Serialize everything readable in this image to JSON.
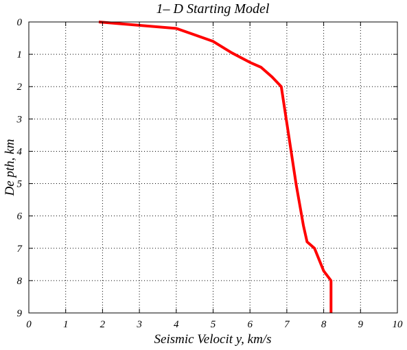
{
  "chart_data": {
    "type": "line",
    "title": "1– D Starting Model",
    "xlabel": "Seismic Velocit y, km/s",
    "ylabel": "De pth, km",
    "xlim": [
      0,
      10
    ],
    "ylim": [
      0,
      9
    ],
    "y_inverted": true,
    "grid": true,
    "grid_style": "dotted",
    "xticks": [
      "0",
      "1",
      "2",
      "3",
      "4",
      "5",
      "6",
      "7",
      "8",
      "9",
      "10"
    ],
    "yticks": [
      "0",
      "1",
      "2",
      "3",
      "4",
      "5",
      "6",
      "7",
      "8",
      "9"
    ],
    "series": [
      {
        "color": "#ff0000",
        "points": [
          {
            "velocity": 1.9,
            "depth": 0.0
          },
          {
            "velocity": 4.0,
            "depth": 0.2
          },
          {
            "velocity": 4.5,
            "depth": 0.4
          },
          {
            "velocity": 5.0,
            "depth": 0.6
          },
          {
            "velocity": 5.5,
            "depth": 0.95
          },
          {
            "velocity": 6.0,
            "depth": 1.25
          },
          {
            "velocity": 6.3,
            "depth": 1.4
          },
          {
            "velocity": 6.6,
            "depth": 1.7
          },
          {
            "velocity": 6.85,
            "depth": 2.0
          },
          {
            "velocity": 7.05,
            "depth": 3.5
          },
          {
            "velocity": 7.25,
            "depth": 5.0
          },
          {
            "velocity": 7.45,
            "depth": 6.3
          },
          {
            "velocity": 7.55,
            "depth": 6.8
          },
          {
            "velocity": 7.75,
            "depth": 7.0
          },
          {
            "velocity": 8.0,
            "depth": 7.7
          },
          {
            "velocity": 8.2,
            "depth": 8.0
          },
          {
            "velocity": 8.2,
            "depth": 9.0
          }
        ]
      }
    ]
  }
}
